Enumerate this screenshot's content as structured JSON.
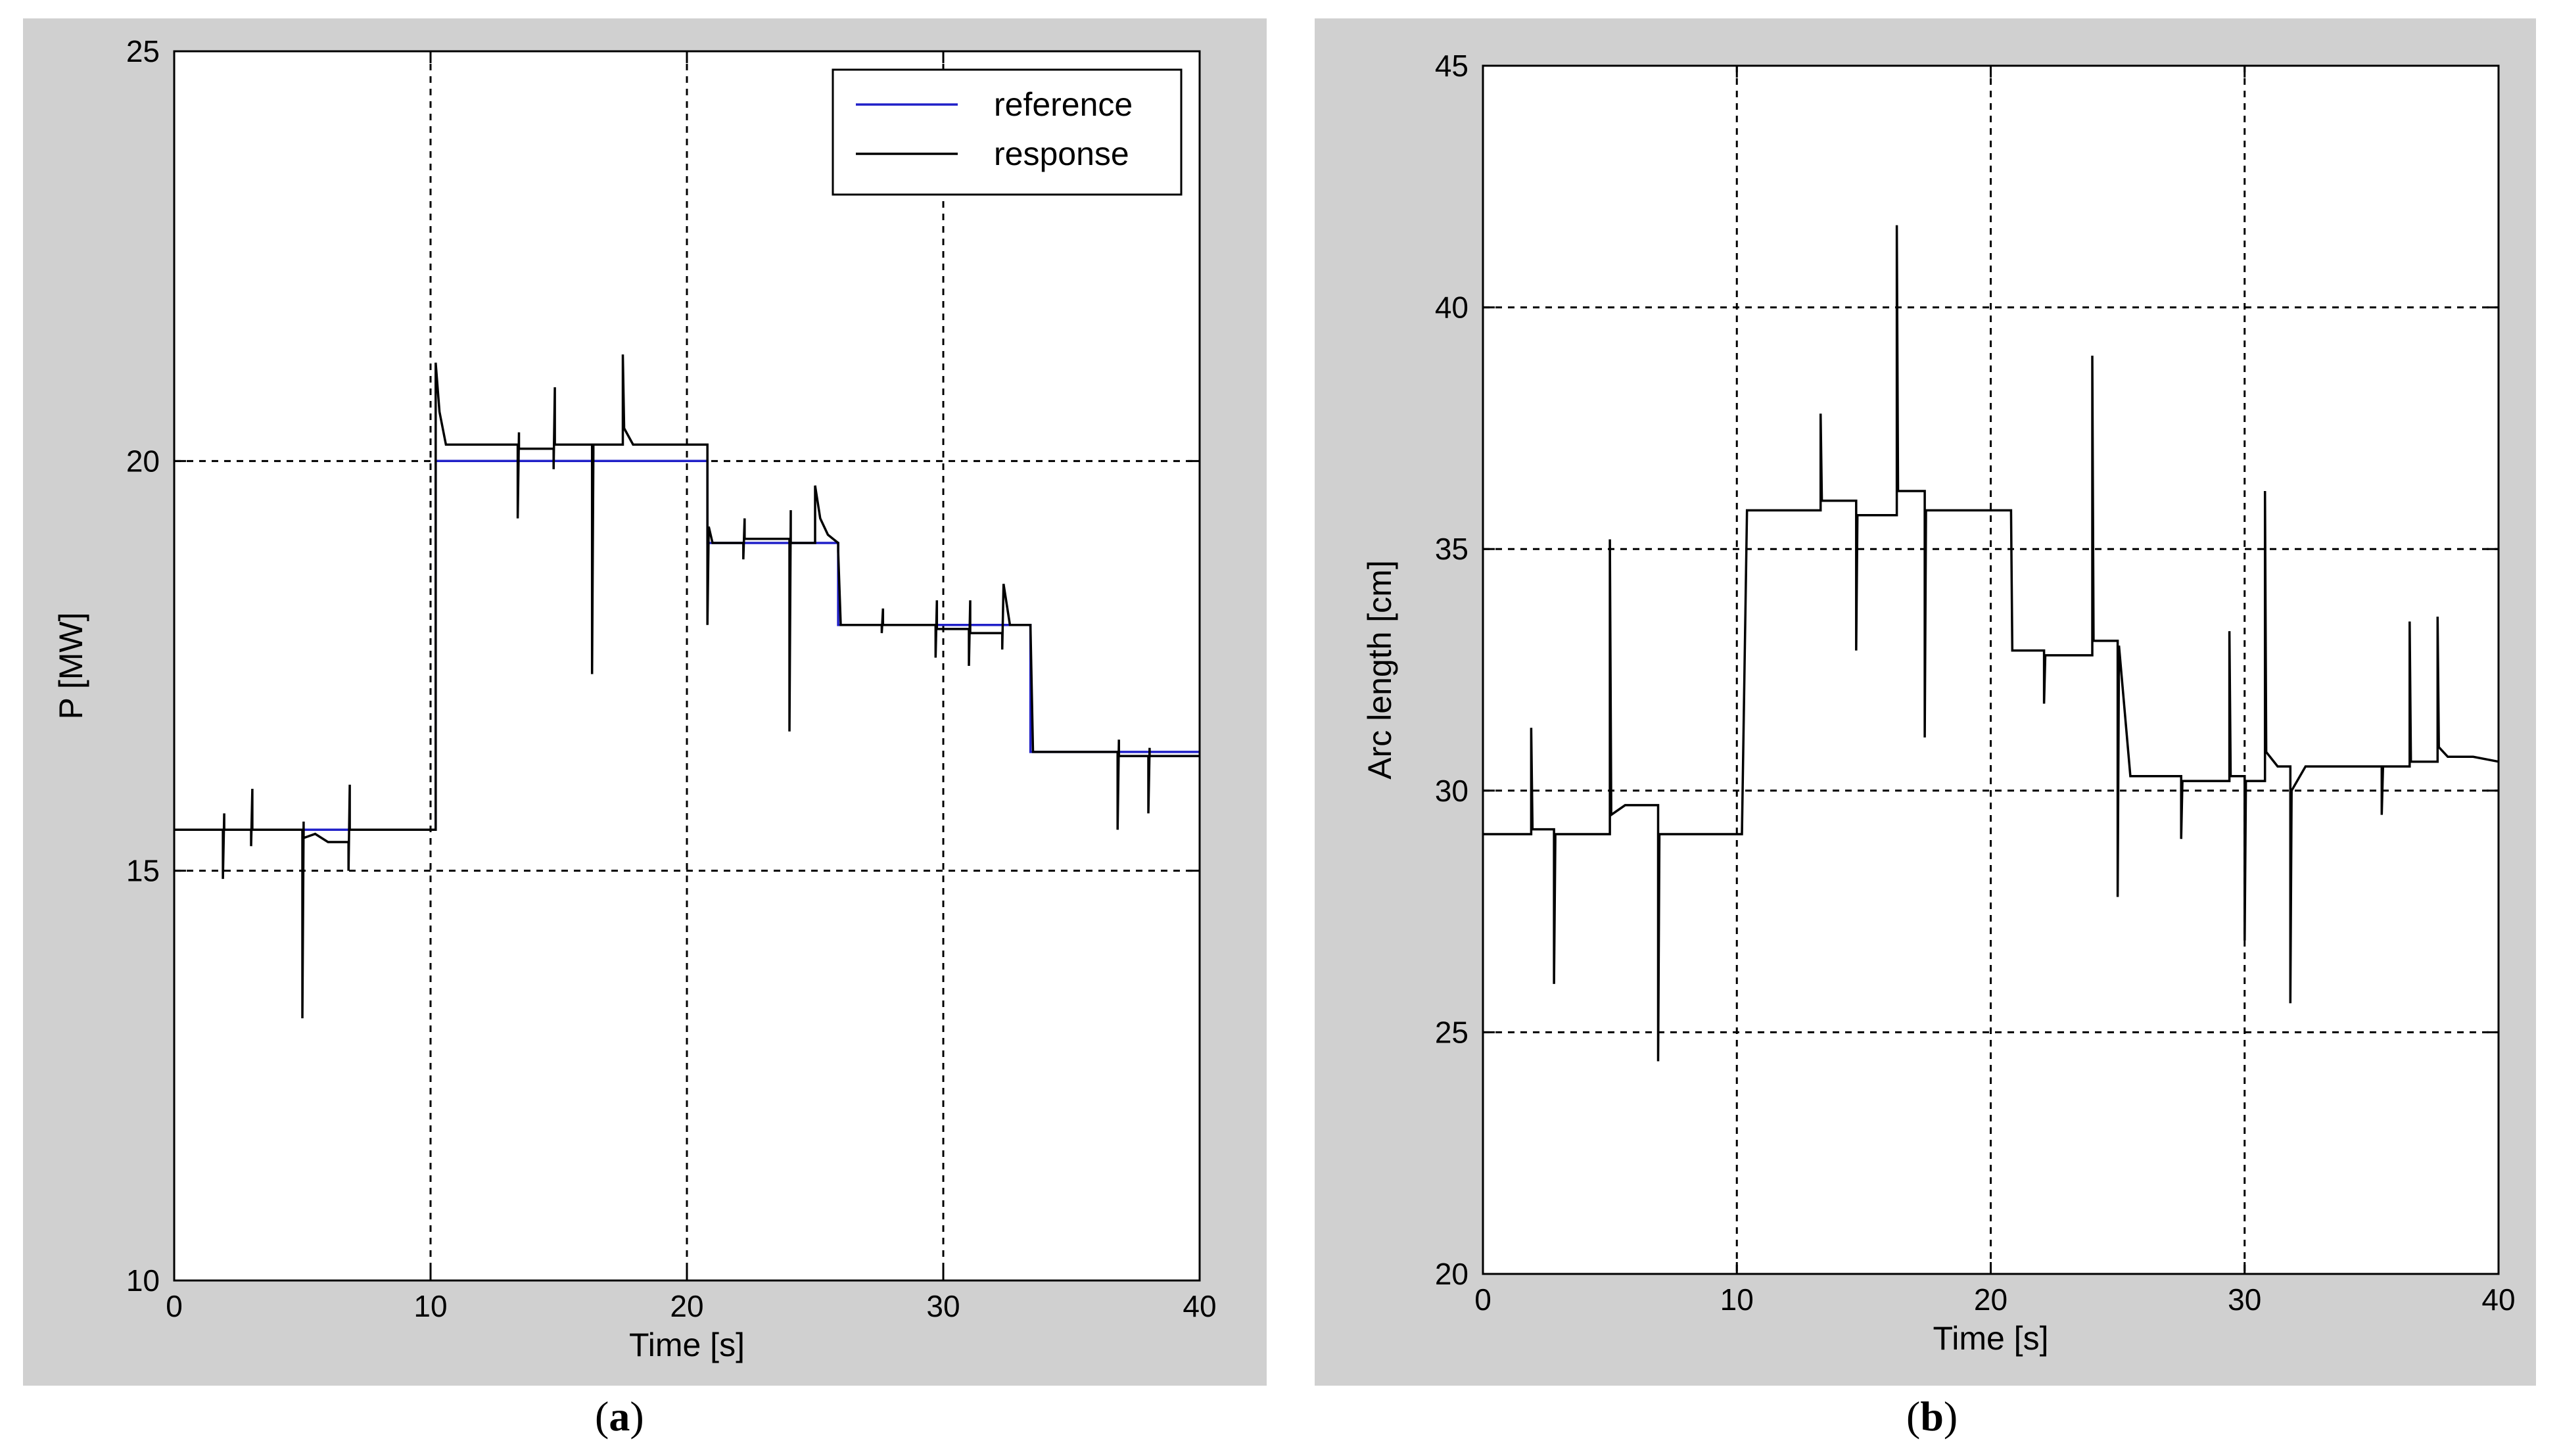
{
  "captions": {
    "a": {
      "open": "(",
      "letter": "a",
      "close": ")"
    },
    "b": {
      "open": "(",
      "letter": "b",
      "close": ")"
    }
  },
  "colors": {
    "reference": "#2020c8",
    "response": "#000000",
    "panel_bg": "#d0d0d0",
    "grid": "#000000"
  },
  "chart_data": [
    {
      "id": "a",
      "type": "line",
      "xlabel": "Time [s]",
      "ylabel": "P [MW]",
      "xlim": [
        0,
        40
      ],
      "ylim": [
        10,
        25
      ],
      "xticks": [
        "0",
        "10",
        "20",
        "30",
        "40"
      ],
      "yticks": [
        "10",
        "15",
        "20",
        "25"
      ],
      "grid": true,
      "legend_position": "top-right",
      "series": [
        {
          "name": "reference",
          "color": "#2020c8",
          "x": [
            0,
            10.2,
            10.2,
            20.8,
            20.8,
            25.9,
            25.9,
            33.4,
            33.4,
            40
          ],
          "y": [
            15.5,
            15.5,
            20,
            20,
            19,
            19,
            18,
            18,
            16.45,
            16.45
          ]
        },
        {
          "name": "response",
          "color": "#000000",
          "x": [
            0,
            1.9,
            1.9,
            1.95,
            1.95,
            3.0,
            3.0,
            3.05,
            3.05,
            5.0,
            5.0,
            5.05,
            5.05,
            5.5,
            6.0,
            6.8,
            6.8,
            6.85,
            6.85,
            10.2,
            10.2,
            10.35,
            10.6,
            10.6,
            13.4,
            13.4,
            13.45,
            13.45,
            14.8,
            14.8,
            14.85,
            14.85,
            16.3,
            16.3,
            16.35,
            16.35,
            17.5,
            17.5,
            17.55,
            17.9,
            17.9,
            20.8,
            20.8,
            20.85,
            21.0,
            21.0,
            22.2,
            22.2,
            22.25,
            22.25,
            24.0,
            24.0,
            24.05,
            24.05,
            25.0,
            25.0,
            25.2,
            25.5,
            25.9,
            25.9,
            26.0,
            26.0,
            27.6,
            27.6,
            27.65,
            27.65,
            29.7,
            29.7,
            29.75,
            29.75,
            31.0,
            31.0,
            31.05,
            31.05,
            32.3,
            32.3,
            32.35,
            32.6,
            33.4,
            33.4,
            33.5,
            33.5,
            36.8,
            36.8,
            36.85,
            36.85,
            38.0,
            38.0,
            38.05,
            38.05,
            40
          ],
          "y": [
            15.5,
            15.5,
            14.9,
            15.7,
            15.5,
            15.5,
            15.3,
            16.0,
            15.5,
            15.5,
            13.2,
            15.6,
            15.4,
            15.45,
            15.35,
            15.35,
            15.0,
            16.05,
            15.5,
            15.5,
            21.2,
            20.6,
            20.2,
            20.2,
            20.2,
            19.3,
            20.35,
            20.15,
            20.15,
            19.9,
            20.9,
            20.2,
            20.2,
            17.4,
            20.1,
            20.2,
            20.2,
            21.3,
            20.4,
            20.2,
            20.2,
            20.2,
            18.0,
            19.2,
            19.0,
            19.0,
            19.0,
            18.8,
            19.3,
            19.05,
            19.05,
            16.7,
            19.4,
            19.0,
            19.0,
            19.7,
            19.3,
            19.1,
            19.0,
            18.9,
            18.0,
            18.0,
            18.0,
            17.9,
            18.2,
            18.0,
            18.0,
            17.6,
            18.3,
            17.95,
            17.95,
            17.5,
            18.3,
            17.9,
            17.9,
            17.7,
            18.5,
            18.0,
            18.0,
            18.0,
            16.45,
            16.45,
            16.45,
            15.5,
            16.6,
            16.4,
            16.4,
            15.7,
            16.5,
            16.4,
            16.4
          ]
        }
      ]
    },
    {
      "id": "b",
      "type": "line",
      "xlabel": "Time [s]",
      "ylabel": "Arc length [cm]",
      "xlim": [
        0,
        40
      ],
      "ylim": [
        20,
        45
      ],
      "xticks": [
        "0",
        "10",
        "20",
        "30",
        "40"
      ],
      "yticks": [
        "20",
        "25",
        "30",
        "35",
        "40",
        "45"
      ],
      "grid": true,
      "series": [
        {
          "name": "arc length",
          "color": "#000000",
          "x": [
            0,
            1.9,
            1.9,
            1.95,
            1.95,
            2.8,
            2.8,
            2.85,
            2.85,
            5.0,
            5.0,
            5.05,
            5.05,
            5.6,
            6.9,
            6.9,
            6.95,
            6.95,
            10.2,
            10.2,
            10.4,
            10.4,
            13.3,
            13.3,
            13.35,
            13.35,
            14.7,
            14.7,
            14.75,
            14.75,
            16.3,
            16.3,
            16.35,
            16.35,
            17.4,
            17.4,
            17.45,
            17.45,
            20.8,
            20.8,
            20.85,
            20.85,
            22.1,
            22.1,
            22.15,
            22.15,
            24.0,
            24.0,
            24.05,
            24.05,
            25.0,
            25.0,
            25.05,
            25.5,
            25.5,
            27.5,
            27.5,
            27.55,
            27.55,
            29.4,
            29.4,
            29.45,
            29.45,
            30.0,
            30.0,
            30.05,
            30.8,
            30.8,
            30.85,
            31.3,
            31.8,
            31.8,
            31.85,
            32.4,
            32.4,
            35.4,
            35.4,
            35.45,
            35.45,
            36.5,
            36.5,
            36.55,
            36.55,
            37.6,
            37.6,
            37.65,
            38.0,
            39.0,
            40
          ],
          "y": [
            29.1,
            29.1,
            31.3,
            29.3,
            29.2,
            29.2,
            26.0,
            29.0,
            29.1,
            29.1,
            35.2,
            29.7,
            29.5,
            29.7,
            29.7,
            24.4,
            29.0,
            29.1,
            29.1,
            29.1,
            35.8,
            35.8,
            35.8,
            37.8,
            36.0,
            36.0,
            36.0,
            32.9,
            35.7,
            35.7,
            35.7,
            41.7,
            36.2,
            36.2,
            36.2,
            31.1,
            35.8,
            35.8,
            35.8,
            35.8,
            32.9,
            32.9,
            32.9,
            31.8,
            32.8,
            32.8,
            32.8,
            39.0,
            33.1,
            33.1,
            33.1,
            27.8,
            33.0,
            30.3,
            30.3,
            30.3,
            29.0,
            30.2,
            30.2,
            30.2,
            33.3,
            30.3,
            30.3,
            30.3,
            26.9,
            30.2,
            30.2,
            36.2,
            30.8,
            30.5,
            30.5,
            25.6,
            30.0,
            30.5,
            30.5,
            30.5,
            29.5,
            30.5,
            30.5,
            30.5,
            33.5,
            30.6,
            30.6,
            30.6,
            33.6,
            30.9,
            30.7,
            30.7,
            30.6
          ]
        }
      ]
    }
  ]
}
